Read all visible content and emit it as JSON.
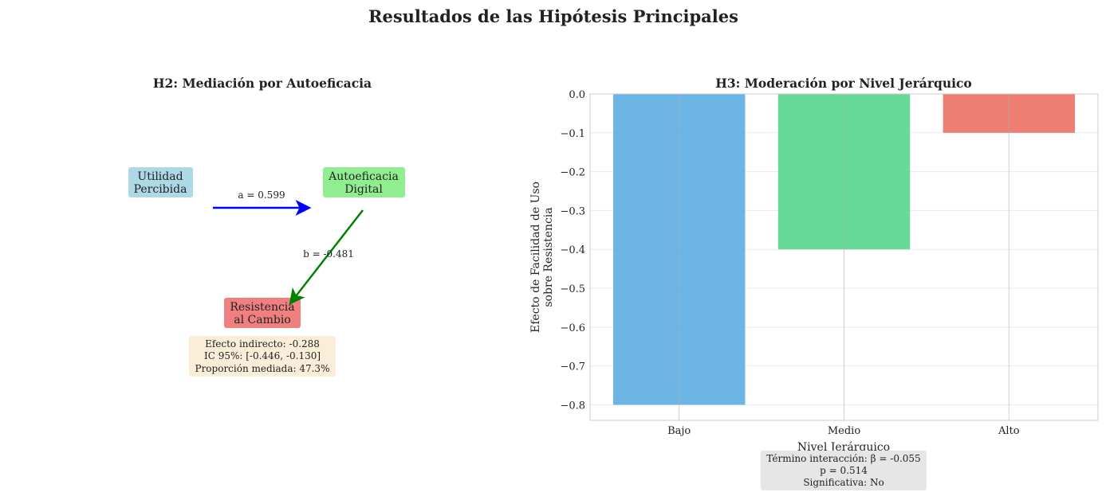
{
  "suptitle": "Resultados de las Hipótesis Principales",
  "mediation": {
    "title": "H2: Mediación por Autoeficacia",
    "nodes": [
      {
        "lines": [
          "Utilidad",
          "Percibida"
        ],
        "color": "#add8e6"
      },
      {
        "lines": [
          "Autoeficacia",
          "Digital"
        ],
        "color": "#90ee90"
      },
      {
        "lines": [
          "Resistencia",
          "al Cambio"
        ],
        "color": "#f08080"
      }
    ],
    "path_a": {
      "label": "a = 0.599",
      "color": "#0000ff"
    },
    "path_b": {
      "label": "b = -0.481",
      "color": "#008000"
    },
    "summary": [
      "Efecto indirecto: -0.288",
      "IC 95%: [-0.446, -0.130]",
      "Proporción mediada: 47.3%"
    ]
  },
  "chart_data": {
    "type": "bar",
    "title": "H3: Moderación por Nivel Jerárquico",
    "categories": [
      "Bajo",
      "Medio",
      "Alto"
    ],
    "values": [
      -0.8,
      -0.4,
      -0.1
    ],
    "colors": [
      "#5dade2",
      "#58d68d",
      "#ec7063"
    ],
    "xlabel": "Nivel Jerárquico",
    "ylabel": [
      "Efecto de Facilidad de Uso",
      "sobre Resistencia"
    ],
    "ylim": [
      -0.84,
      0.0
    ],
    "yticks": [
      0.0,
      -0.1,
      -0.2,
      -0.3,
      -0.4,
      -0.5,
      -0.6,
      -0.7,
      -0.8
    ],
    "ytick_labels": [
      "0.0",
      "−0.1",
      "−0.2",
      "−0.3",
      "−0.4",
      "−0.5",
      "−0.6",
      "−0.7",
      "−0.8"
    ],
    "grid": true,
    "annotation": [
      "Término interacción: β = -0.055",
      "p = 0.514",
      "Significativa: No"
    ]
  }
}
